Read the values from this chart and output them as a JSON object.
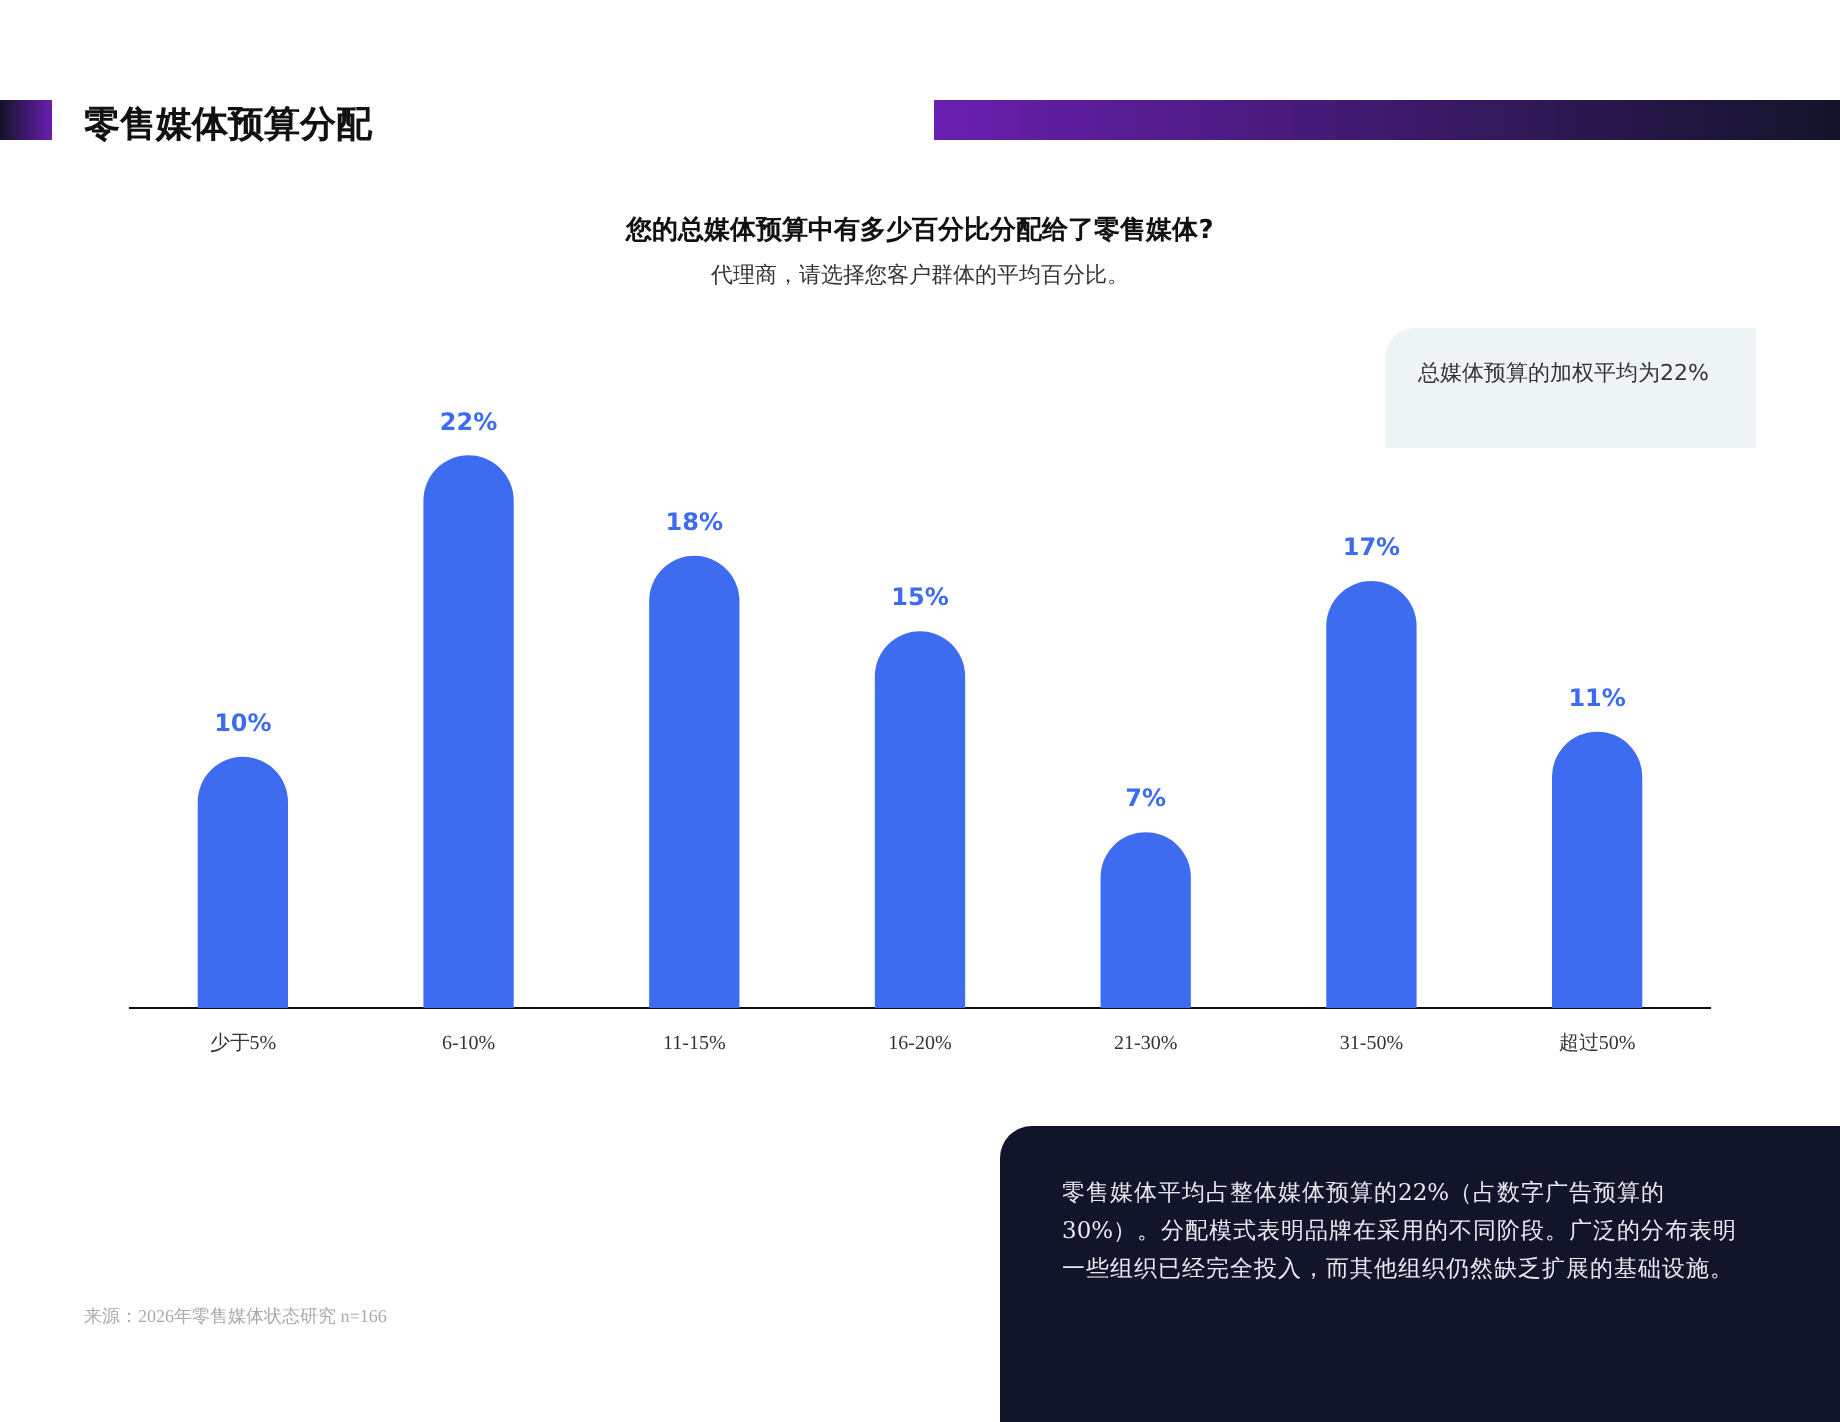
{
  "chart_data": {
    "type": "bar",
    "title": "您的总媒体预算中有多少百分比分配给了零售媒体?",
    "subtitle": "代理商，请选择您客户群体的平均百分比。",
    "categories": [
      "少于5%",
      "6-10%",
      "11-15%",
      "16-20%",
      "21-30%",
      "31-50%",
      "超过50%"
    ],
    "values": [
      10,
      22,
      18,
      15,
      7,
      17,
      11
    ],
    "value_labels": [
      "10%",
      "22%",
      "18%",
      "15%",
      "7%",
      "17%",
      "11%"
    ],
    "color": "#3e6cf0",
    "legend": false,
    "grid": false,
    "annotations": [
      "零售媒体预算分配",
      "总媒体预算的加权平均为22%",
      "零售媒体平均占整体媒体预算的22%（占数字广告预算的30%）。分配模式表明品牌在采用的不同阶段。广泛的分布表明一些组织已经完全投入，而其他组织仍然缺乏扩展的基础设施。",
      "来源：2026年零售媒体状态研究 n=166"
    ]
  }
}
